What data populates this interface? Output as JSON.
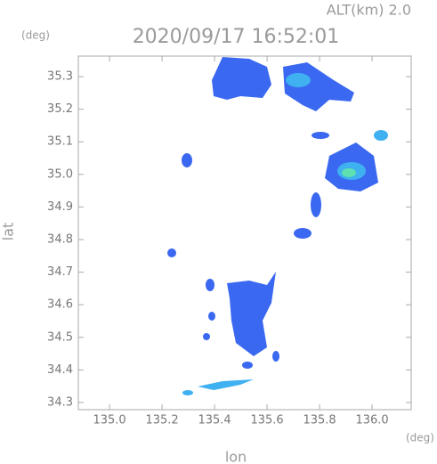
{
  "chart_data": {
    "type": "map",
    "title": "2020/09/17 16:52:01",
    "subtitle": "ALT(km) 2.0",
    "x_label": "lon",
    "y_label": "lat",
    "x_unit": "(deg)",
    "y_unit": "(deg)",
    "xlim": [
      134.881,
      136.149
    ],
    "ylim": [
      34.278,
      35.363
    ],
    "xticks": [
      {
        "value": 135.0,
        "label": "135.0"
      },
      135.2,
      135.4,
      135.6,
      135.8,
      {
        "value": 136.0,
        "label": "136.0"
      }
    ],
    "yticks": [
      34.3,
      34.4,
      34.5,
      34.6,
      34.7,
      34.8,
      34.9,
      {
        "value": 35.0,
        "label": "35.0"
      },
      35.1,
      35.2,
      35.3
    ]
  }
}
